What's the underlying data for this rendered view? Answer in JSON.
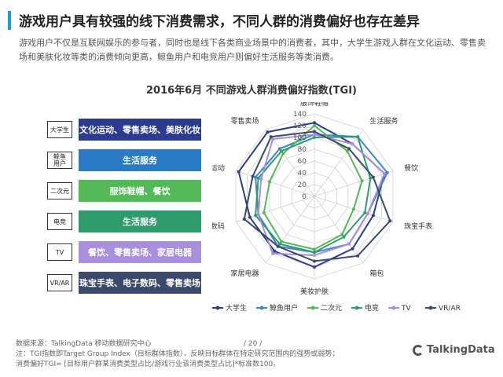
{
  "header": {
    "title": "游戏用户具有较强的线下消费需求，不同人群的消费偏好也存在差异",
    "intro": "游戏用户不仅是互联网娱乐的参与者，同时也是线下各类商业场景中的消费者，其中，大学生游戏人群在文化运动、零售卖场和美肤化妆等类的消费倾向更高，鲸鱼用户和电竞用户则偏好生活服务等类消费。"
  },
  "chart_title": "2016年6月 不同游戏人群消费偏好指数(TGI)",
  "segments": [
    {
      "tag": "大学生",
      "preference": "文化运动、零售卖场、美肤化妆",
      "color": "#2b3c8c"
    },
    {
      "tag": "鲸鱼\n用户",
      "preference": "生活服务",
      "color": "#2a7bc4"
    },
    {
      "tag": "二次元",
      "preference": "服饰鞋帽、餐饮",
      "color": "#52b956"
    },
    {
      "tag": "电竞",
      "preference": "生活服务",
      "color": "#2d9b6b"
    },
    {
      "tag": "TV",
      "preference": "餐饮、零售卖场、家居电器",
      "color": "#a88fdc"
    },
    {
      "tag": "VR/AR",
      "preference": "珠宝手表、电子数码、零售卖场",
      "color": "#3b4a6b"
    }
  ],
  "chart_data": {
    "type": "radar",
    "axes": [
      "服饰鞋帽",
      "生活服务",
      "餐饮",
      "珠宝手表",
      "箱包",
      "美妆护肤",
      "家居电器",
      "数码",
      "文化运动",
      "零售卖场"
    ],
    "rlim": [
      0,
      140
    ],
    "ticks": [
      0,
      20,
      40,
      60,
      80,
      100,
      120,
      140
    ],
    "series": [
      {
        "name": "大学生",
        "color": "#2b3c8c",
        "values": [
          125,
          110,
          125,
          105,
          110,
          120,
          115,
          115,
          135,
          135
        ]
      },
      {
        "name": "鲸鱼用户",
        "color": "#3a86c8",
        "values": [
          105,
          125,
          130,
          95,
          100,
          95,
          105,
          100,
          105,
          100
        ]
      },
      {
        "name": "二次元",
        "color": "#52b956",
        "values": [
          120,
          95,
          85,
          70,
          80,
          90,
          95,
          90,
          80,
          90
        ]
      },
      {
        "name": "电竞",
        "color": "#2d9b6b",
        "values": [
          100,
          125,
          100,
          90,
          85,
          95,
          100,
          105,
          100,
          95
        ]
      },
      {
        "name": "TV",
        "color": "#a88fdc",
        "values": [
          105,
          110,
          125,
          95,
          100,
          100,
          120,
          100,
          95,
          120
        ]
      },
      {
        "name": "VR/AR",
        "color": "#3b4a6b",
        "values": [
          110,
          100,
          105,
          135,
          125,
          110,
          105,
          125,
          110,
          125
        ]
      }
    ]
  },
  "footer": {
    "source": "数据来源：TalkingData  移动数据研究中心",
    "note1": "注：TGI指数即Target  Group  Index（目标群体指数），反映目标群体在特定研究范围内的强势或弱势；",
    "note2": "消费偏好TGI=  [目标用户群某消费类型占比/游戏行业该消费类型占比]*标准数100。",
    "page": "/  20  /",
    "logo": "TalkingData"
  }
}
